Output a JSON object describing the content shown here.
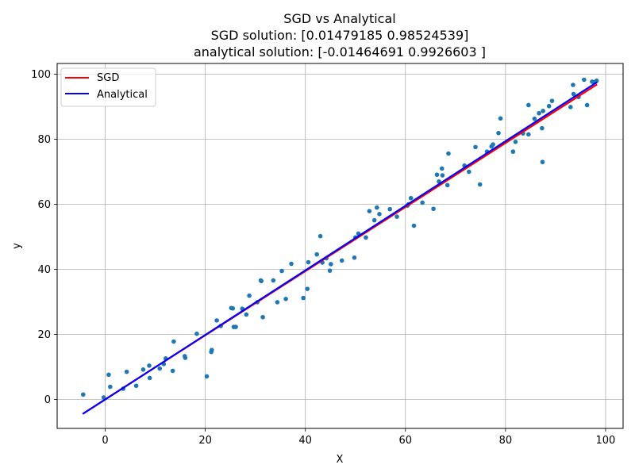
{
  "chart_data": {
    "type": "scatter",
    "title": [
      "SGD  vs Analytical",
      "SGD solution: [0.01479185 0.98524539]",
      "analytical solution: [-0.01464691  0.9926603 ]"
    ],
    "xlabel": "X",
    "ylabel": "y",
    "xlim": [
      -9.6,
      103.5
    ],
    "ylim": [
      -8.9,
      103.3
    ],
    "xticks": [
      0,
      20,
      40,
      60,
      80,
      100
    ],
    "yticks": [
      0,
      20,
      40,
      60,
      80,
      100
    ],
    "grid": true,
    "legend_position": "upper-left",
    "colors": {
      "points": "#1f77b4",
      "sgd": "#ff0000",
      "analytical": "#0000ff",
      "grid": "#b0b0b0"
    },
    "lines": [
      {
        "name": "SGD",
        "intercept": 0.01479185,
        "slope": 0.98524539,
        "x_range": [
          -4.5,
          98.3
        ]
      },
      {
        "name": "Analytical",
        "intercept": -0.01464691,
        "slope": 0.9926603,
        "x_range": [
          -4.5,
          98.3
        ]
      }
    ],
    "points": [
      [
        -4.4,
        1.5
      ],
      [
        -0.3,
        0.6
      ],
      [
        0.7,
        7.6
      ],
      [
        1.0,
        3.9
      ],
      [
        3.6,
        3.3
      ],
      [
        4.3,
        8.5
      ],
      [
        6.2,
        4.2
      ],
      [
        7.6,
        9.2
      ],
      [
        8.8,
        10.4
      ],
      [
        8.9,
        6.6
      ],
      [
        10.9,
        9.5
      ],
      [
        11.7,
        10.9
      ],
      [
        12.1,
        12.6
      ],
      [
        13.5,
        8.8
      ],
      [
        13.7,
        17.8
      ],
      [
        15.9,
        13.3
      ],
      [
        16.0,
        12.8
      ],
      [
        18.3,
        20.2
      ],
      [
        20.3,
        7.1
      ],
      [
        21.2,
        14.6
      ],
      [
        21.3,
        15.2
      ],
      [
        22.3,
        24.3
      ],
      [
        23.1,
        22.6
      ],
      [
        25.2,
        28.1
      ],
      [
        25.5,
        28.0
      ],
      [
        25.7,
        22.3
      ],
      [
        26.1,
        22.3
      ],
      [
        27.4,
        27.9
      ],
      [
        28.2,
        26.1
      ],
      [
        28.8,
        31.9
      ],
      [
        30.4,
        29.9
      ],
      [
        31.1,
        36.6
      ],
      [
        31.2,
        36.4
      ],
      [
        31.5,
        25.3
      ],
      [
        33.6,
        36.6
      ],
      [
        34.4,
        29.9
      ],
      [
        35.3,
        39.5
      ],
      [
        36.1,
        30.9
      ],
      [
        37.2,
        41.7
      ],
      [
        39.6,
        31.2
      ],
      [
        40.4,
        34.0
      ],
      [
        40.6,
        42.2
      ],
      [
        42.3,
        44.6
      ],
      [
        43.0,
        50.2
      ],
      [
        43.4,
        42.1
      ],
      [
        44.2,
        43.4
      ],
      [
        44.9,
        39.6
      ],
      [
        45.1,
        41.6
      ],
      [
        47.3,
        42.7
      ],
      [
        49.8,
        43.6
      ],
      [
        50.0,
        49.8
      ],
      [
        50.6,
        51.0
      ],
      [
        52.1,
        49.8
      ],
      [
        52.8,
        57.9
      ],
      [
        53.8,
        55.1
      ],
      [
        54.3,
        59.0
      ],
      [
        54.8,
        57.0
      ],
      [
        56.9,
        58.5
      ],
      [
        58.3,
        56.2
      ],
      [
        60.4,
        59.6
      ],
      [
        60.6,
        60.0
      ],
      [
        61.1,
        61.9
      ],
      [
        61.7,
        53.4
      ],
      [
        63.4,
        60.5
      ],
      [
        65.6,
        58.6
      ],
      [
        66.3,
        69.1
      ],
      [
        66.7,
        67.0
      ],
      [
        67.3,
        71.0
      ],
      [
        67.4,
        68.9
      ],
      [
        68.4,
        65.9
      ],
      [
        68.6,
        75.6
      ],
      [
        71.8,
        71.9
      ],
      [
        72.7,
        70.0
      ],
      [
        74.0,
        77.6
      ],
      [
        74.9,
        66.1
      ],
      [
        76.3,
        76.2
      ],
      [
        77.2,
        77.8
      ],
      [
        77.5,
        78.4
      ],
      [
        78.6,
        81.9
      ],
      [
        79.0,
        86.4
      ],
      [
        81.5,
        76.2
      ],
      [
        82.0,
        79.2
      ],
      [
        83.5,
        81.8
      ],
      [
        84.6,
        90.5
      ],
      [
        84.6,
        81.5
      ],
      [
        85.8,
        86.3
      ],
      [
        86.7,
        88.0
      ],
      [
        87.3,
        83.4
      ],
      [
        87.4,
        73.0
      ],
      [
        87.5,
        88.7
      ],
      [
        88.7,
        90.2
      ],
      [
        89.3,
        91.8
      ],
      [
        93.0,
        89.9
      ],
      [
        93.5,
        96.7
      ],
      [
        93.6,
        93.9
      ],
      [
        94.6,
        93.0
      ],
      [
        95.7,
        98.3
      ],
      [
        96.3,
        90.5
      ],
      [
        97.3,
        97.7
      ],
      [
        97.6,
        97.6
      ],
      [
        98.2,
        98.0
      ]
    ]
  }
}
